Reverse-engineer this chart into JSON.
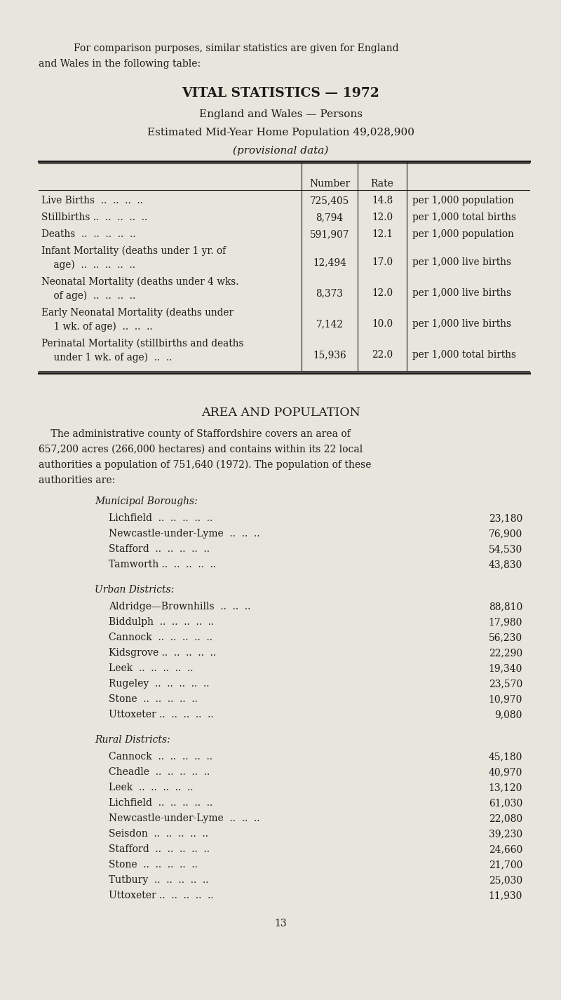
{
  "bg_color": "#e8e5dc",
  "text_color": "#1a1a1a",
  "intro_line1": "For comparison purposes, similar statistics are given for England",
  "intro_line2": "and Wales in the following table:",
  "title1": "VITAL STATISTICS — 1972",
  "title2": "England and Wales — Persons",
  "title3": "Estimated Mid-Year Home Population 49,028,900",
  "title4": "(provisional data)",
  "table_rows": [
    {
      "label1": "Live Births  ..  ..  ..  ..",
      "label2": "",
      "number": "725,405",
      "rate": "14.8",
      "note": "per 1,000 population"
    },
    {
      "label1": "Stillbirths ..  ..  ..  ..  ..",
      "label2": "",
      "number": "8,794",
      "rate": "12.0",
      "note": "per 1,000 total births"
    },
    {
      "label1": "Deaths  ..  ..  ..  ..  ..",
      "label2": "",
      "number": "591,907",
      "rate": "12.1",
      "note": "per 1,000 population"
    },
    {
      "label1": "Infant Mortality (deaths under 1 yr. of",
      "label2": "    age)  ..  ..  ..  ..  ..",
      "number": "12,494",
      "rate": "17.0",
      "note": "per 1,000 live births"
    },
    {
      "label1": "Neonatal Mortality (deaths under 4 wks.",
      "label2": "    of age)  ..  ..  ..  ..",
      "number": "8,373",
      "rate": "12.0",
      "note": "per 1,000 live births"
    },
    {
      "label1": "Early Neonatal Mortality (deaths under",
      "label2": "    1 wk. of age)  ..  ..  ..",
      "number": "7,142",
      "rate": "10.0",
      "note": "per 1,000 live births"
    },
    {
      "label1": "Perinatal Mortality (stillbirths and deaths",
      "label2": "    under 1 wk. of age)  ..  ..",
      "number": "15,936",
      "rate": "22.0",
      "note": "per 1,000 total births"
    }
  ],
  "area_title": "AREA AND POPULATION",
  "area_para_lines": [
    "    The administrative county of Staffordshire covers an area of",
    "657,200 acres (266,000 hectares) and contains within its 22 local",
    "authorities a population of 751,640 (1972). The population of these",
    "authorities are:"
  ],
  "municipal_boroughs_header": "Municipal Boroughs:",
  "municipal_boroughs": [
    {
      "name": "Lichfield  ..  ..  ..  ..  ..",
      "pop": "23,180"
    },
    {
      "name": "Newcastle-under-Lyme  ..  ..  ..",
      "pop": "76,900"
    },
    {
      "name": "Stafford  ..  ..  ..  ..  ..",
      "pop": "54,530"
    },
    {
      "name": "Tamworth ..  ..  ..  ..  ..",
      "pop": "43,830"
    }
  ],
  "urban_districts_header": "Urban Districts:",
  "urban_districts": [
    {
      "name": "Aldridge—Brownhills  ..  ..  ..",
      "pop": "88,810"
    },
    {
      "name": "Biddulph  ..  ..  ..  ..  ..",
      "pop": "17,980"
    },
    {
      "name": "Cannock  ..  ..  ..  ..  ..",
      "pop": "56,230"
    },
    {
      "name": "Kidsgrove ..  ..  ..  ..  ..",
      "pop": "22,290"
    },
    {
      "name": "Leek  ..  ..  ..  ..  ..",
      "pop": "19,340"
    },
    {
      "name": "Rugeley  ..  ..  ..  ..  ..",
      "pop": "23,570"
    },
    {
      "name": "Stone  ..  ..  ..  ..  ..",
      "pop": "10,970"
    },
    {
      "name": "Uttoxeter ..  ..  ..  ..  ..",
      "pop": "9,080"
    }
  ],
  "rural_districts_header": "Rural Districts:",
  "rural_districts": [
    {
      "name": "Cannock  ..  ..  ..  ..  ..",
      "pop": "45,180"
    },
    {
      "name": "Cheadle  ..  ..  ..  ..  ..",
      "pop": "40,970"
    },
    {
      "name": "Leek  ..  ..  ..  ..  ..",
      "pop": "13,120"
    },
    {
      "name": "Lichfield  ..  ..  ..  ..  ..",
      "pop": "61,030"
    },
    {
      "name": "Newcastle-under-Lyme  ..  ..  ..",
      "pop": "22,080"
    },
    {
      "name": "Seisdon  ..  ..  ..  ..  ..",
      "pop": "39,230"
    },
    {
      "name": "Stafford  ..  ..  ..  ..  ..",
      "pop": "24,660"
    },
    {
      "name": "Stone  ..  ..  ..  ..  ..",
      "pop": "21,700"
    },
    {
      "name": "Tutbury  ..  ..  ..  ..  ..",
      "pop": "25,030"
    },
    {
      "name": "Uttoxeter ..  ..  ..  ..  ..",
      "pop": "11,930"
    }
  ],
  "page_number": "13"
}
